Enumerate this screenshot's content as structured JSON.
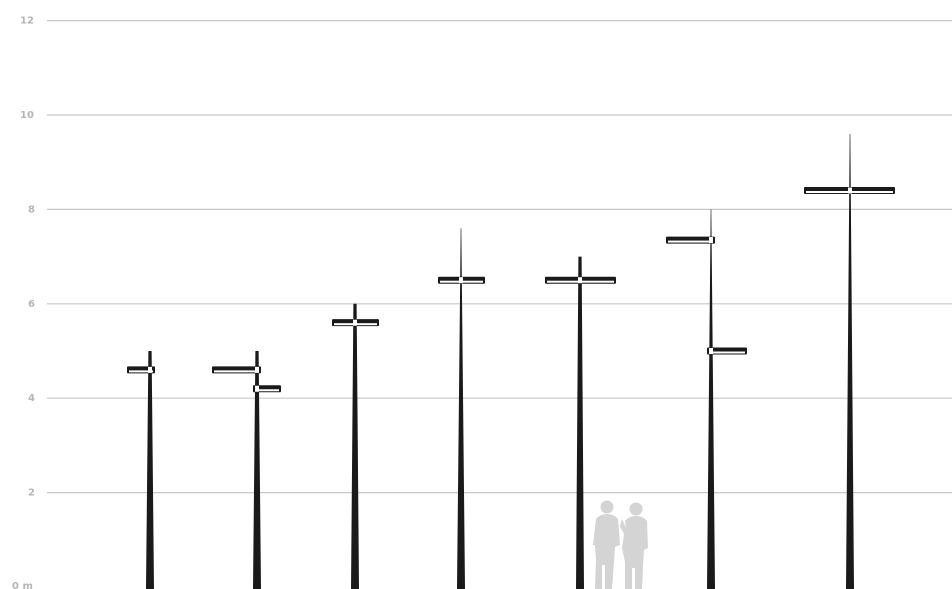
{
  "chart_data": {
    "type": "diagram",
    "y_unit": "m",
    "y_range": [
      0,
      12
    ],
    "y_ticks": [
      {
        "value": 0,
        "label": "0 m"
      },
      {
        "value": 2,
        "label": "2"
      },
      {
        "value": 4,
        "label": "4"
      },
      {
        "value": 6,
        "label": "6"
      },
      {
        "value": 8,
        "label": "8"
      },
      {
        "value": 10,
        "label": "10"
      },
      {
        "value": 12,
        "label": "12"
      }
    ],
    "grid": true,
    "colors": {
      "gridline": "#c8c8c8",
      "pole": "#1a1a1a",
      "luminaire_light": "#ffffff",
      "people": "#d4d4d4",
      "tick_label": "#b5b5b5"
    },
    "poles": [
      {
        "height": 5.0,
        "luminaires": [
          {
            "height": 4.6,
            "side": "both-short"
          }
        ]
      },
      {
        "height": 5.0,
        "luminaires": [
          {
            "height": 4.6,
            "side": "left"
          },
          {
            "height": 4.2,
            "side": "right"
          }
        ]
      },
      {
        "height": 6.0,
        "luminaires": [
          {
            "height": 5.6,
            "side": "both"
          }
        ]
      },
      {
        "height": 7.6,
        "luminaires": [
          {
            "height": 6.5,
            "side": "both"
          }
        ]
      },
      {
        "height": 7.0,
        "luminaires": [
          {
            "height": 6.5,
            "side": "both-wide"
          }
        ]
      },
      {
        "height": 8.0,
        "luminaires": [
          {
            "height": 7.35,
            "side": "left"
          },
          {
            "height": 5.0,
            "side": "right"
          }
        ]
      },
      {
        "height": 9.6,
        "luminaires": [
          {
            "height": 8.4,
            "side": "both-wide"
          }
        ]
      }
    ],
    "scale_figures": "two-people"
  }
}
